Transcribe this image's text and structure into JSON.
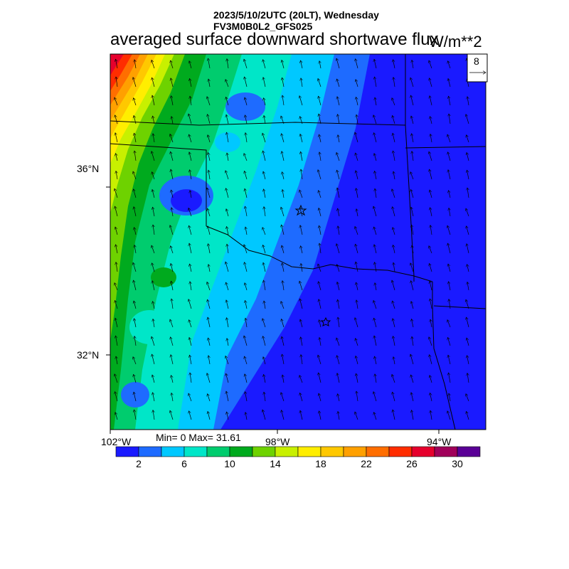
{
  "header": {
    "date_line": "2023/5/10/2UTC (20LT), Wednesday",
    "model_line": "FV3M0B0L2_GFS025",
    "title": "averaged surface downward shortwave flux",
    "units": "W/m**2"
  },
  "map": {
    "lat_labels": [
      "36°N",
      "32°N"
    ],
    "lon_labels": [
      "102°W",
      "98°W",
      "94°W"
    ],
    "ref_vector_label": "8",
    "stats": "Min= 0 Max= 31.61"
  },
  "colorbar": {
    "colors": [
      "#1a1aff",
      "#1e6bff",
      "#00c8ff",
      "#00e6c8",
      "#00cc6e",
      "#00aa1e",
      "#6ed200",
      "#c8f000",
      "#ffee00",
      "#ffc800",
      "#ffa000",
      "#ff6e00",
      "#ff2d00",
      "#e6002d",
      "#a0005a",
      "#5a0096"
    ],
    "labels": [
      "2",
      "6",
      "10",
      "14",
      "18",
      "22",
      "26",
      "30"
    ]
  },
  "colors": {
    "ocean_blue": "#1a1aff"
  }
}
